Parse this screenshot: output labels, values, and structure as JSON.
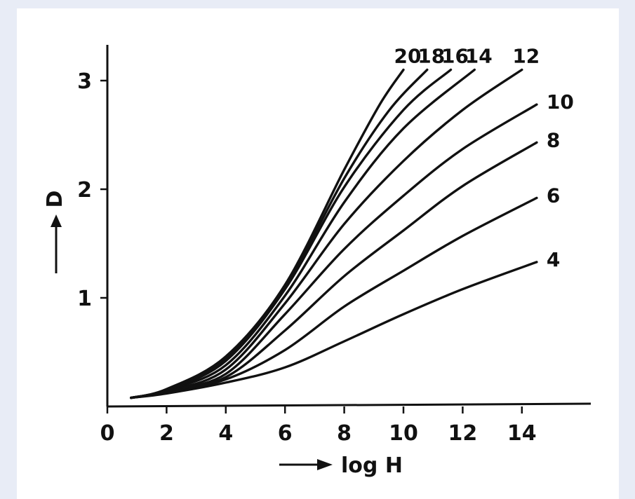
{
  "chart_data": {
    "type": "line",
    "xlabel": "log H",
    "ylabel": "D",
    "xlim": [
      0,
      16
    ],
    "ylim": [
      0,
      3.4
    ],
    "xticks": [
      "0",
      "2",
      "4",
      "6",
      "8",
      "10",
      "12",
      "14"
    ],
    "yticks": [
      "1",
      "2",
      "3"
    ],
    "grid": false,
    "series": [
      {
        "name": "4",
        "x": [
          0.8,
          2,
          4,
          6,
          8,
          10,
          12,
          14.5
        ],
        "y": [
          0.08,
          0.12,
          0.22,
          0.36,
          0.6,
          0.85,
          1.08,
          1.33
        ]
      },
      {
        "name": "6",
        "x": [
          0.8,
          2,
          4,
          6,
          8,
          10,
          12,
          14.5
        ],
        "y": [
          0.08,
          0.13,
          0.25,
          0.52,
          0.92,
          1.25,
          1.57,
          1.92
        ]
      },
      {
        "name": "8",
        "x": [
          0.8,
          2,
          4,
          6,
          8,
          10,
          12,
          14.5
        ],
        "y": [
          0.08,
          0.13,
          0.27,
          0.7,
          1.2,
          1.62,
          2.03,
          2.43
        ]
      },
      {
        "name": "10",
        "x": [
          0.8,
          2,
          4,
          6,
          8,
          10,
          12,
          14.5
        ],
        "y": [
          0.08,
          0.14,
          0.3,
          0.85,
          1.45,
          1.94,
          2.37,
          2.78
        ]
      },
      {
        "name": "12",
        "x": [
          0.8,
          2,
          4,
          6,
          8,
          10,
          12,
          14
        ],
        "y": [
          0.08,
          0.14,
          0.34,
          0.95,
          1.68,
          2.26,
          2.73,
          3.1
        ]
      },
      {
        "name": "14",
        "x": [
          0.8,
          2,
          4,
          6,
          8,
          10,
          12.4
        ],
        "y": [
          0.08,
          0.15,
          0.38,
          1.02,
          1.88,
          2.56,
          3.1
        ]
      },
      {
        "name": "16",
        "x": [
          0.8,
          2,
          4,
          6,
          8,
          10,
          11.6
        ],
        "y": [
          0.08,
          0.15,
          0.42,
          1.08,
          2.02,
          2.73,
          3.1
        ]
      },
      {
        "name": "18",
        "x": [
          0.8,
          2,
          4,
          6,
          8,
          9.5,
          10.8
        ],
        "y": [
          0.08,
          0.15,
          0.44,
          1.1,
          2.1,
          2.72,
          3.1
        ]
      },
      {
        "name": "20",
        "x": [
          0.8,
          2,
          4,
          6,
          8,
          9.2,
          10
        ],
        "y": [
          0.08,
          0.16,
          0.46,
          1.12,
          2.18,
          2.78,
          3.1
        ]
      }
    ]
  }
}
